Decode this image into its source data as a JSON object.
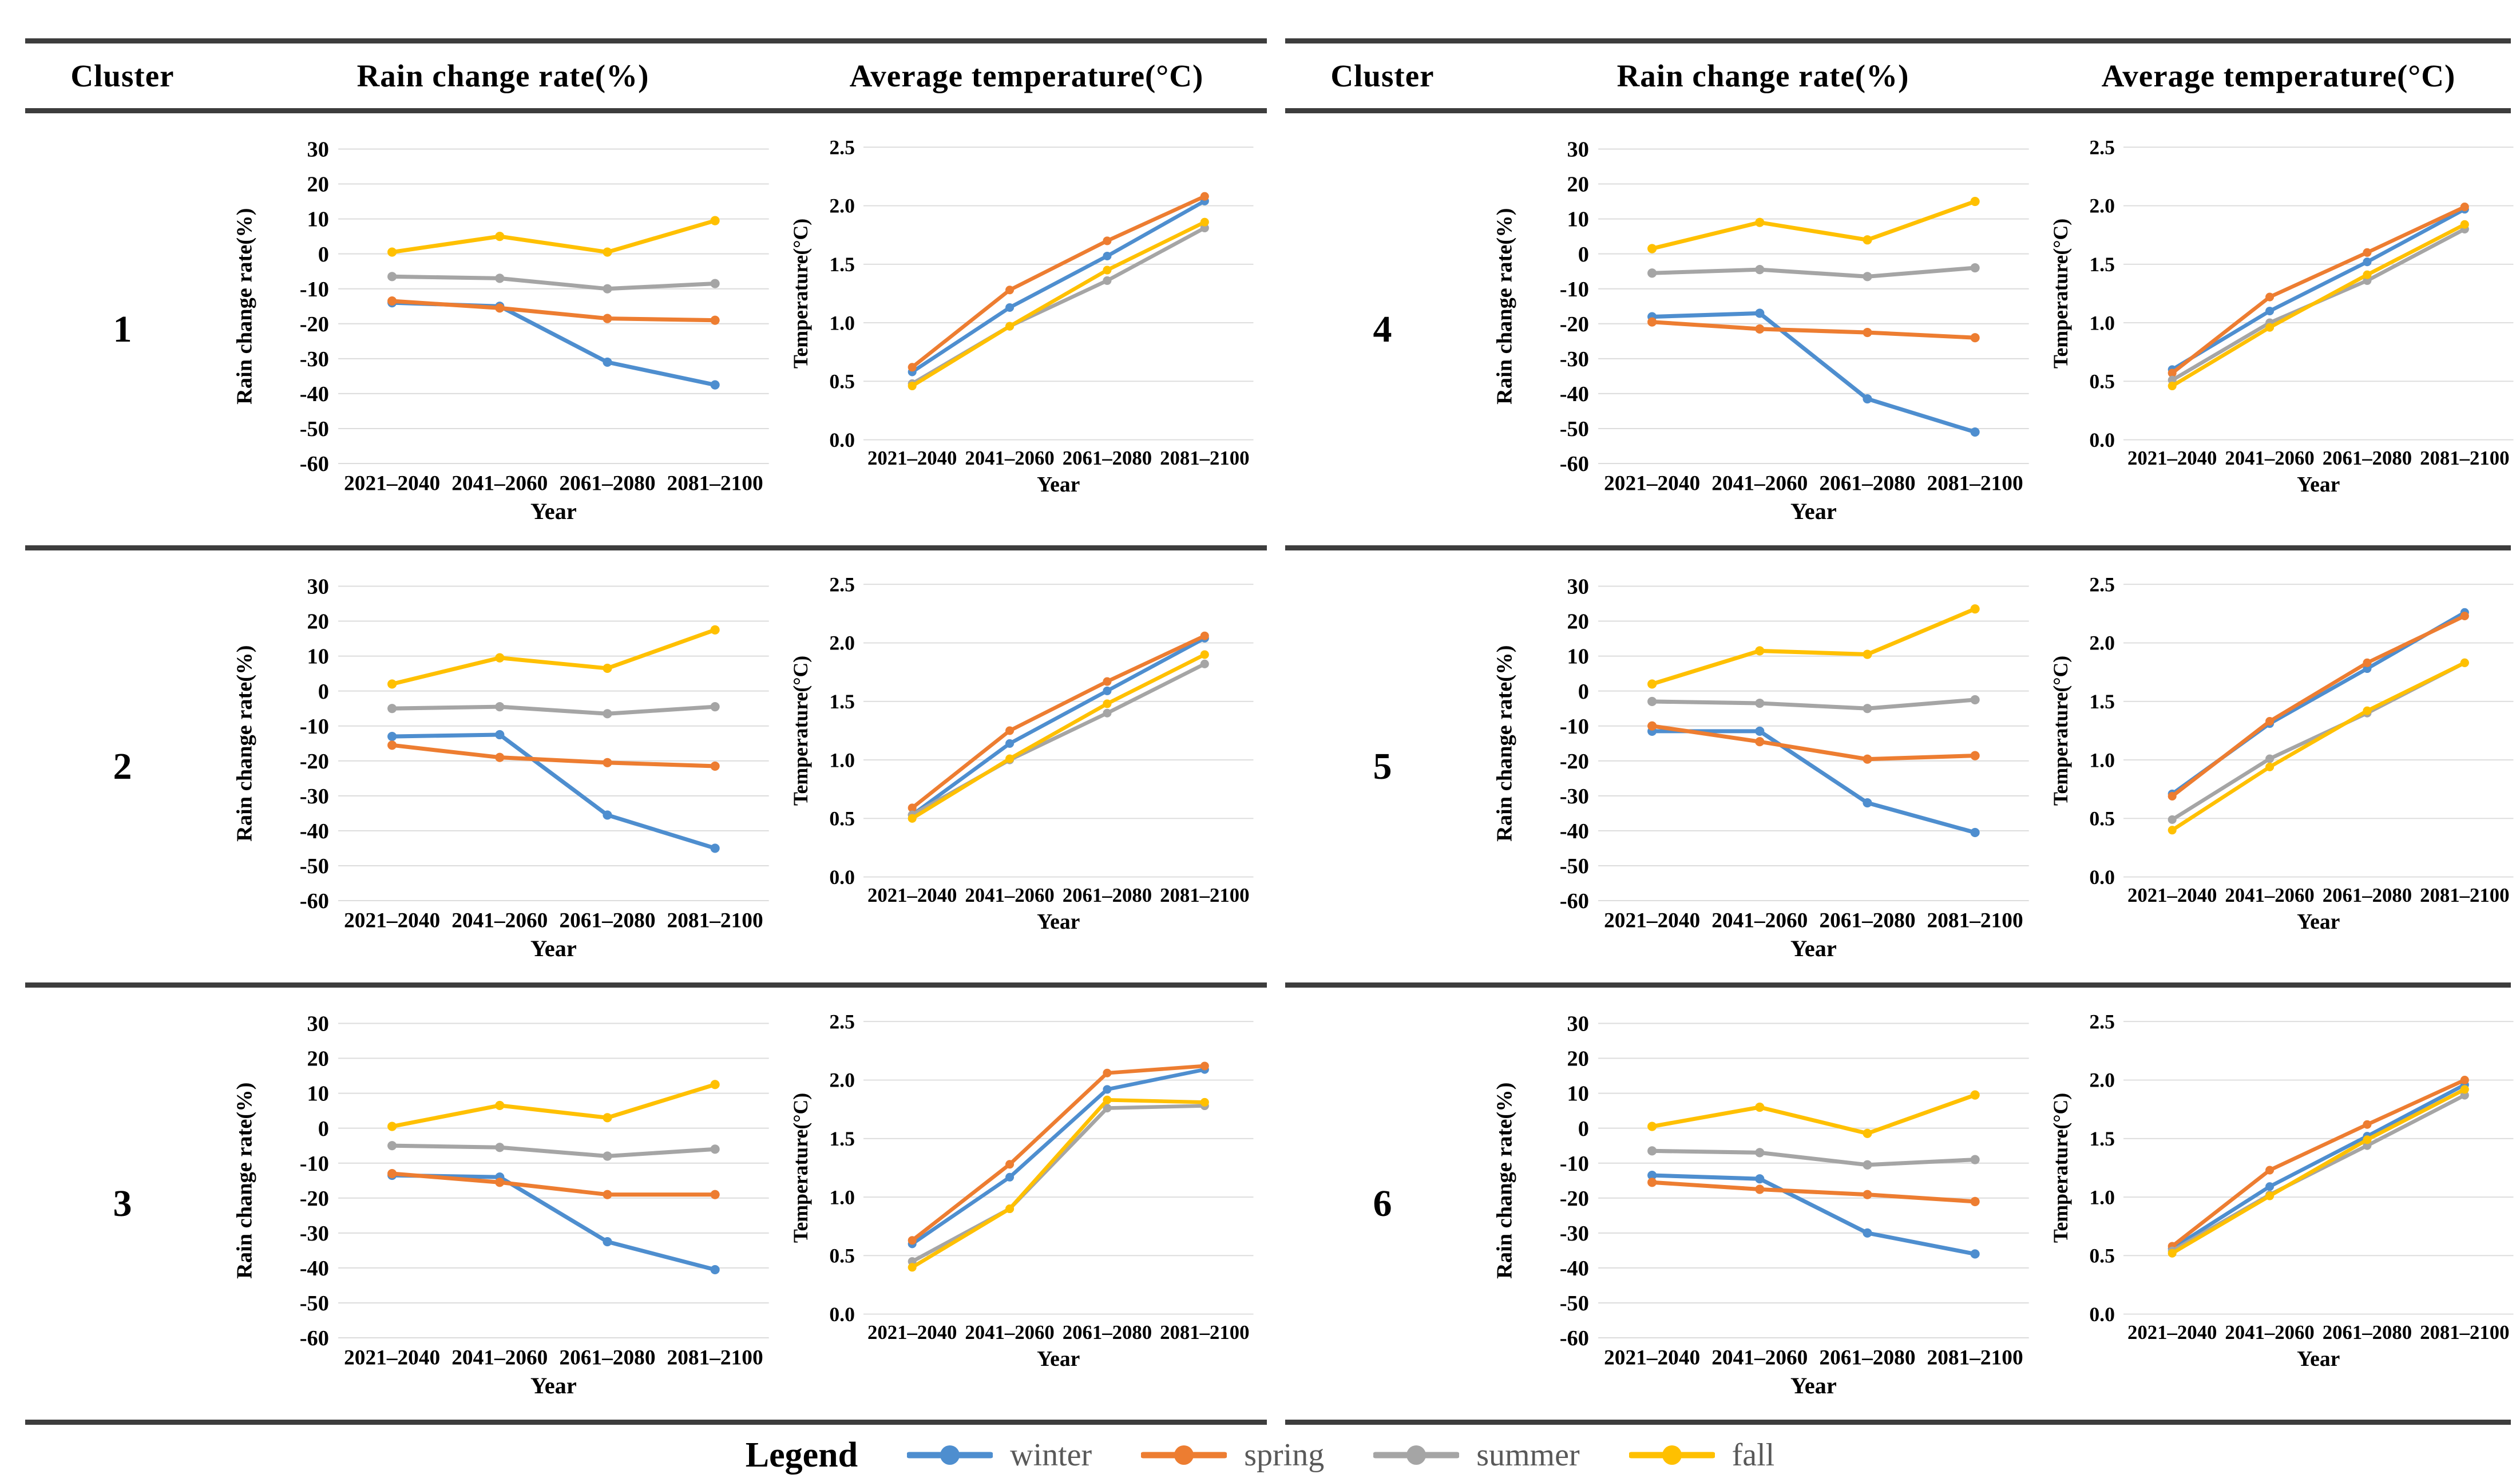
{
  "table_headers": {
    "cluster": "Cluster",
    "rain": "Rain change rate(%)",
    "temp": "Average temperature(°C)"
  },
  "legend": {
    "title": "Legend",
    "items": [
      {
        "label": "winter",
        "color": "#4E8ECF"
      },
      {
        "label": "spring",
        "color": "#ED7D31"
      },
      {
        "label": "summer",
        "color": "#A5A5A5"
      },
      {
        "label": "fall",
        "color": "#FFC000"
      }
    ]
  },
  "chart_data": {
    "type": "line",
    "grid": true,
    "legend_position": "bottom",
    "categories": [
      "2021–2040",
      "2041–2060",
      "2061–2080",
      "2081–2100"
    ],
    "rain_axis": {
      "ylabel": "Rain change rate(%)",
      "xlabel": "Year",
      "ylim": [
        -60,
        30
      ],
      "ytick_step": 10
    },
    "temp_axis": {
      "ylabel": "Temperature(°C)",
      "xlabel": "Year",
      "ylim": [
        0,
        2.5
      ],
      "ytick_step": 0.5
    },
    "clusters": [
      {
        "id": "1",
        "rain": {
          "series": [
            {
              "name": "winter",
              "values": [
                -14,
                -15,
                -31,
                -37.5
              ]
            },
            {
              "name": "spring",
              "values": [
                -13.5,
                -15.5,
                -18.5,
                -19
              ]
            },
            {
              "name": "summer",
              "values": [
                -6.5,
                -7,
                -10,
                -8.5
              ]
            },
            {
              "name": "fall",
              "values": [
                0.5,
                5,
                0.5,
                9.5
              ]
            }
          ]
        },
        "temp": {
          "series": [
            {
              "name": "winter",
              "values": [
                0.58,
                1.13,
                1.57,
                2.04
              ]
            },
            {
              "name": "spring",
              "values": [
                0.62,
                1.28,
                1.7,
                2.08
              ]
            },
            {
              "name": "summer",
              "values": [
                0.48,
                0.97,
                1.36,
                1.81
              ]
            },
            {
              "name": "fall",
              "values": [
                0.46,
                0.97,
                1.45,
                1.86
              ]
            }
          ]
        }
      },
      {
        "id": "2",
        "rain": {
          "series": [
            {
              "name": "winter",
              "values": [
                -13,
                -12.5,
                -35.5,
                -45
              ]
            },
            {
              "name": "spring",
              "values": [
                -15.5,
                -19,
                -20.5,
                -21.5
              ]
            },
            {
              "name": "summer",
              "values": [
                -5,
                -4.5,
                -6.5,
                -4.5
              ]
            },
            {
              "name": "fall",
              "values": [
                2,
                9.5,
                6.5,
                17.5
              ]
            }
          ]
        },
        "temp": {
          "series": [
            {
              "name": "winter",
              "values": [
                0.53,
                1.14,
                1.59,
                2.04
              ]
            },
            {
              "name": "spring",
              "values": [
                0.59,
                1.25,
                1.67,
                2.06
              ]
            },
            {
              "name": "summer",
              "values": [
                0.53,
                1.0,
                1.4,
                1.82
              ]
            },
            {
              "name": "fall",
              "values": [
                0.5,
                1.01,
                1.48,
                1.9
              ]
            }
          ]
        }
      },
      {
        "id": "3",
        "rain": {
          "series": [
            {
              "name": "winter",
              "values": [
                -13.5,
                -14,
                -32.5,
                -40.5
              ]
            },
            {
              "name": "spring",
              "values": [
                -13,
                -15.5,
                -19,
                -19
              ]
            },
            {
              "name": "summer",
              "values": [
                -5,
                -5.5,
                -8,
                -6
              ]
            },
            {
              "name": "fall",
              "values": [
                0.5,
                6.5,
                3,
                12.5
              ]
            }
          ]
        },
        "temp": {
          "series": [
            {
              "name": "winter",
              "values": [
                0.6,
                1.17,
                1.92,
                2.09
              ]
            },
            {
              "name": "spring",
              "values": [
                0.63,
                1.28,
                2.06,
                2.12
              ]
            },
            {
              "name": "summer",
              "values": [
                0.45,
                0.9,
                1.76,
                1.78
              ]
            },
            {
              "name": "fall",
              "values": [
                0.4,
                0.9,
                1.83,
                1.81
              ]
            }
          ]
        }
      },
      {
        "id": "4",
        "rain": {
          "series": [
            {
              "name": "winter",
              "values": [
                -18,
                -17,
                -41.5,
                -51
              ]
            },
            {
              "name": "spring",
              "values": [
                -19.5,
                -21.5,
                -22.5,
                -24
              ]
            },
            {
              "name": "summer",
              "values": [
                -5.5,
                -4.5,
                -6.5,
                -4
              ]
            },
            {
              "name": "fall",
              "values": [
                1.5,
                9,
                4,
                15
              ]
            }
          ]
        },
        "temp": {
          "series": [
            {
              "name": "winter",
              "values": [
                0.6,
                1.1,
                1.52,
                1.97
              ]
            },
            {
              "name": "spring",
              "values": [
                0.57,
                1.22,
                1.6,
                1.99
              ]
            },
            {
              "name": "summer",
              "values": [
                0.51,
                1.0,
                1.36,
                1.8
              ]
            },
            {
              "name": "fall",
              "values": [
                0.46,
                0.96,
                1.41,
                1.84
              ]
            }
          ]
        }
      },
      {
        "id": "5",
        "rain": {
          "series": [
            {
              "name": "winter",
              "values": [
                -11.5,
                -11.5,
                -32,
                -40.5
              ]
            },
            {
              "name": "spring",
              "values": [
                -10,
                -14.5,
                -19.5,
                -18.5
              ]
            },
            {
              "name": "summer",
              "values": [
                -3,
                -3.5,
                -5,
                -2.5
              ]
            },
            {
              "name": "fall",
              "values": [
                2,
                11.5,
                10.5,
                23.5
              ]
            }
          ]
        },
        "temp": {
          "series": [
            {
              "name": "winter",
              "values": [
                0.71,
                1.31,
                1.78,
                2.26
              ]
            },
            {
              "name": "spring",
              "values": [
                0.69,
                1.33,
                1.83,
                2.23
              ]
            },
            {
              "name": "summer",
              "values": [
                0.49,
                1.01,
                1.4,
                1.83
              ]
            },
            {
              "name": "fall",
              "values": [
                0.4,
                0.94,
                1.42,
                1.83
              ]
            }
          ]
        }
      },
      {
        "id": "6",
        "rain": {
          "series": [
            {
              "name": "winter",
              "values": [
                -13.5,
                -14.5,
                -30,
                -36
              ]
            },
            {
              "name": "spring",
              "values": [
                -15.5,
                -17.5,
                -19,
                -21
              ]
            },
            {
              "name": "summer",
              "values": [
                -6.5,
                -7,
                -10.5,
                -9
              ]
            },
            {
              "name": "fall",
              "values": [
                0.5,
                6,
                -1.5,
                9.5
              ]
            }
          ]
        },
        "temp": {
          "series": [
            {
              "name": "winter",
              "values": [
                0.56,
                1.09,
                1.52,
                1.96
              ]
            },
            {
              "name": "spring",
              "values": [
                0.58,
                1.23,
                1.62,
                2.0
              ]
            },
            {
              "name": "summer",
              "values": [
                0.54,
                1.02,
                1.44,
                1.87
              ]
            },
            {
              "name": "fall",
              "values": [
                0.52,
                1.01,
                1.49,
                1.92
              ]
            }
          ]
        }
      }
    ]
  }
}
